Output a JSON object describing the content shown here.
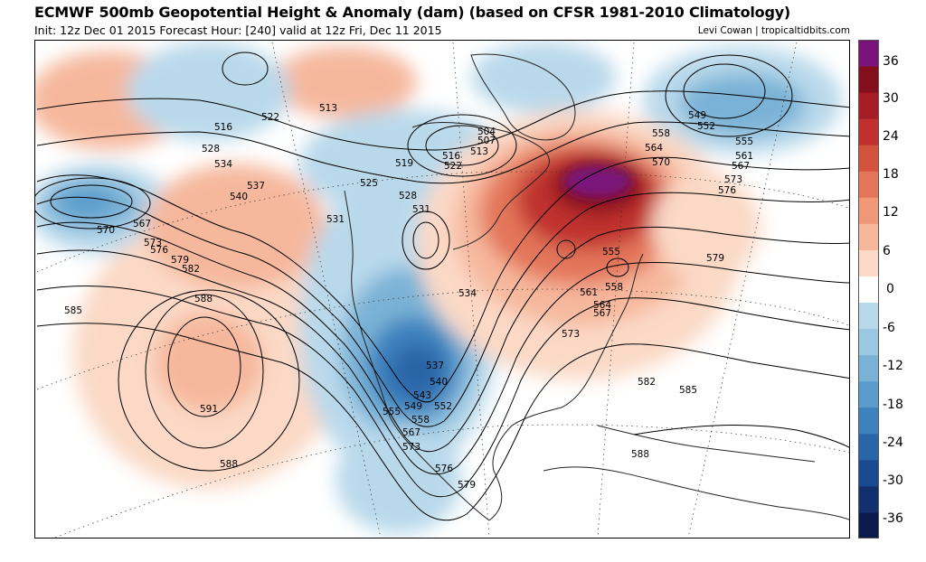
{
  "header": {
    "title": "ECMWF 500mb Geopotential Height & Anomaly (dam) (based on CFSR 1981-2010 Climatology)",
    "subtitle": "Init: 12z Dec 01 2015   Forecast Hour: [240]   valid at 12z Fri, Dec 11 2015",
    "credit": "Levi Cowan | tropicaltidbits.com"
  },
  "colorbar": {
    "labels": [
      "36",
      "30",
      "24",
      "18",
      "12",
      "6",
      "0",
      "-6",
      "-12",
      "-18",
      "-24",
      "-30",
      "-36"
    ],
    "colors": [
      "#0b1a4a",
      "#12306e",
      "#1a4a8f",
      "#2a65a8",
      "#3d82bd",
      "#5a9bcb",
      "#7ab2d6",
      "#9ac7e1",
      "#b9d9eb",
      "#ffffff",
      "#fbd9c6",
      "#f6b89d",
      "#f09878",
      "#e3765a",
      "#d4533f",
      "#c0302f",
      "#a71d26",
      "#840f1c",
      "#7a137a"
    ]
  },
  "contour_labels": [
    {
      "id": "513",
      "text": "513"
    },
    {
      "id": "516a",
      "text": "516"
    },
    {
      "id": "522a",
      "text": "522"
    },
    {
      "id": "528a",
      "text": "528"
    },
    {
      "id": "534a",
      "text": "534"
    },
    {
      "id": "537a",
      "text": "537"
    },
    {
      "id": "540a",
      "text": "540"
    },
    {
      "id": "567a",
      "text": "567"
    },
    {
      "id": "570a",
      "text": "570"
    },
    {
      "id": "573a",
      "text": "573"
    },
    {
      "id": "576a",
      "text": "576"
    },
    {
      "id": "579a",
      "text": "579"
    },
    {
      "id": "582a",
      "text": "582"
    },
    {
      "id": "585a",
      "text": "585"
    },
    {
      "id": "588a",
      "text": "588"
    },
    {
      "id": "591",
      "text": "591"
    },
    {
      "id": "588b",
      "text": "588"
    },
    {
      "id": "531a",
      "text": "531"
    },
    {
      "id": "525",
      "text": "525"
    },
    {
      "id": "519",
      "text": "519"
    },
    {
      "id": "516b",
      "text": "516"
    },
    {
      "id": "522b",
      "text": "522"
    },
    {
      "id": "504",
      "text": "504"
    },
    {
      "id": "507",
      "text": "507"
    },
    {
      "id": "513b",
      "text": "513"
    },
    {
      "id": "528b",
      "text": "528"
    },
    {
      "id": "531b",
      "text": "531"
    },
    {
      "id": "534b",
      "text": "534"
    },
    {
      "id": "537b",
      "text": "537"
    },
    {
      "id": "540b",
      "text": "540"
    },
    {
      "id": "543",
      "text": "543"
    },
    {
      "id": "549a",
      "text": "549"
    },
    {
      "id": "552a",
      "text": "552"
    },
    {
      "id": "555a",
      "text": "555"
    },
    {
      "id": "558a",
      "text": "558"
    },
    {
      "id": "567b",
      "text": "567"
    },
    {
      "id": "573b",
      "text": "573"
    },
    {
      "id": "576b",
      "text": "576"
    },
    {
      "id": "579b",
      "text": "579"
    },
    {
      "id": "558b",
      "text": "558"
    },
    {
      "id": "564a",
      "text": "564"
    },
    {
      "id": "570b",
      "text": "570"
    },
    {
      "id": "555b",
      "text": "555"
    },
    {
      "id": "558c",
      "text": "558"
    },
    {
      "id": "561a",
      "text": "561"
    },
    {
      "id": "564b",
      "text": "564"
    },
    {
      "id": "567c",
      "text": "567"
    },
    {
      "id": "573c",
      "text": "573"
    },
    {
      "id": "582b",
      "text": "582"
    },
    {
      "id": "585b",
      "text": "585"
    },
    {
      "id": "588c",
      "text": "588"
    },
    {
      "id": "579c",
      "text": "579"
    },
    {
      "id": "549b",
      "text": "549"
    },
    {
      "id": "552b",
      "text": "552"
    },
    {
      "id": "555c",
      "text": "555"
    },
    {
      "id": "561b",
      "text": "561"
    },
    {
      "id": "567d",
      "text": "567"
    },
    {
      "id": "573d",
      "text": "573"
    },
    {
      "id": "576c",
      "text": "576"
    }
  ]
}
